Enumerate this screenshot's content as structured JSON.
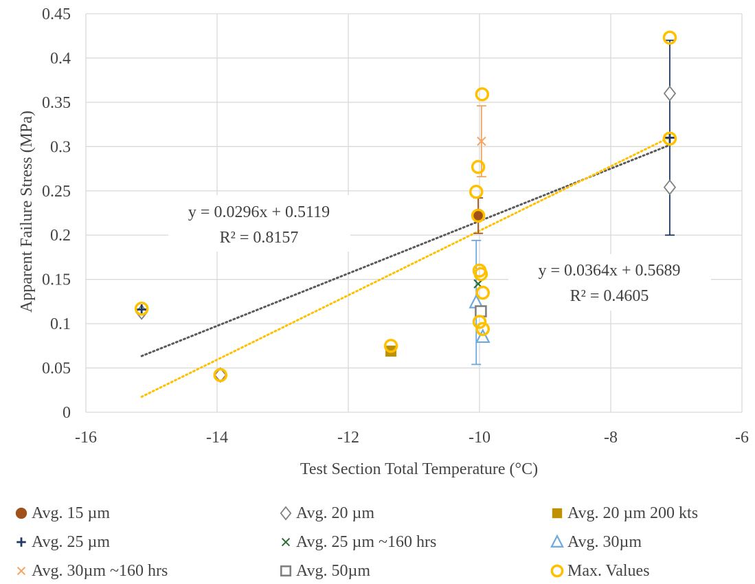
{
  "chart_data": {
    "type": "scatter",
    "xlabel": "Test Section Total Temperature (°C)",
    "ylabel": "Apparent Failure Stress (MPa)",
    "xlim": [
      -16,
      -6
    ],
    "ylim": [
      0,
      0.45
    ],
    "x_ticks": [
      "-16",
      "-14",
      "-12",
      "-10",
      "-8",
      "-6"
    ],
    "y_ticks": [
      "0",
      "0.05",
      "0.1",
      "0.15",
      "0.2",
      "0.25",
      "0.3",
      "0.35",
      "0.4",
      "0.45"
    ],
    "grid": true,
    "legend_position": "bottom",
    "series": [
      {
        "name": "Avg. 15 µm",
        "marker": "circle-filled",
        "color": "#a0521a",
        "points": [
          {
            "x": -10.02,
            "y": 0.222,
            "err_low": 0.02,
            "err_high": 0.02
          }
        ]
      },
      {
        "name": "Avg. 20 µm",
        "marker": "diamond-open",
        "color": "#808080",
        "points": [
          {
            "x": -15.15,
            "y": 0.113
          },
          {
            "x": -13.95,
            "y": 0.042
          },
          {
            "x": -7.1,
            "y": 0.254
          },
          {
            "x": -7.1,
            "y": 0.36
          }
        ]
      },
      {
        "name": "Avg. 20 µm 200 kts",
        "marker": "square-filled",
        "color": "#bf9000",
        "points": [
          {
            "x": -11.35,
            "y": 0.069
          }
        ]
      },
      {
        "name": "Avg. 25 µm",
        "marker": "plus",
        "color": "#1f3864",
        "points": [
          {
            "x": -15.15,
            "y": 0.116
          },
          {
            "x": -7.1,
            "y": 0.31,
            "err_low": 0.11,
            "err_high": 0.11
          }
        ]
      },
      {
        "name": "Avg. 25 µm ~160 hrs",
        "marker": "x",
        "color": "#2e6b2e",
        "points": [
          {
            "x": -10.02,
            "y": 0.145
          }
        ]
      },
      {
        "name": "Avg. 30µm",
        "marker": "triangle-open",
        "color": "#6fa8dc",
        "points": [
          {
            "x": -10.05,
            "y": 0.124,
            "err_low": 0.07,
            "err_high": 0.07
          },
          {
            "x": -9.95,
            "y": 0.085
          }
        ]
      },
      {
        "name": "Avg. 30µm ~160 hrs",
        "marker": "x",
        "color": "#f4a460",
        "points": [
          {
            "x": -9.97,
            "y": 0.306,
            "err_low": 0.04,
            "err_high": 0.04
          }
        ]
      },
      {
        "name": "Avg. 50µm",
        "marker": "square-open",
        "color": "#808080",
        "points": [
          {
            "x": -9.98,
            "y": 0.114
          }
        ]
      },
      {
        "name": "Max. Values",
        "marker": "circle-open",
        "color": "#ffc000",
        "points": [
          {
            "x": -15.15,
            "y": 0.117
          },
          {
            "x": -13.95,
            "y": 0.042
          },
          {
            "x": -11.35,
            "y": 0.075
          },
          {
            "x": -10.05,
            "y": 0.249
          },
          {
            "x": -10.02,
            "y": 0.277
          },
          {
            "x": -9.96,
            "y": 0.359
          },
          {
            "x": -10.02,
            "y": 0.222
          },
          {
            "x": -10.0,
            "y": 0.16
          },
          {
            "x": -9.98,
            "y": 0.156
          },
          {
            "x": -9.95,
            "y": 0.135
          },
          {
            "x": -10.0,
            "y": 0.102
          },
          {
            "x": -9.95,
            "y": 0.094
          },
          {
            "x": -7.1,
            "y": 0.423
          },
          {
            "x": -7.1,
            "y": 0.309
          }
        ]
      }
    ],
    "trendlines": [
      {
        "slope": 0.0296,
        "intercept": 0.5119,
        "x_range": [
          -15.15,
          -7.1
        ],
        "color": "#595959",
        "equation": "y = 0.0296x + 0.5119",
        "r2": "R² = 0.8157"
      },
      {
        "slope": 0.0364,
        "intercept": 0.5689,
        "x_range": [
          -15.15,
          -7.1
        ],
        "color": "#ffc000",
        "equation": "y = 0.0364x + 0.5689",
        "r2": "R² = 0.4605"
      }
    ],
    "legend": [
      {
        "label": "Avg. 15 µm",
        "marker": "circle-filled",
        "color": "#a0521a"
      },
      {
        "label": "Avg. 20 µm",
        "marker": "diamond-open",
        "color": "#808080"
      },
      {
        "label": "Avg. 20 µm 200 kts",
        "marker": "square-filled",
        "color": "#bf9000"
      },
      {
        "label": "Avg. 25 µm",
        "marker": "plus",
        "color": "#1f3864"
      },
      {
        "label": "Avg. 25 µm ~160 hrs",
        "marker": "x",
        "color": "#2e6b2e"
      },
      {
        "label": "Avg. 30µm",
        "marker": "triangle-open",
        "color": "#6fa8dc"
      },
      {
        "label": "Avg. 30µm ~160 hrs",
        "marker": "x",
        "color": "#f4a460"
      },
      {
        "label": "Avg. 50µm",
        "marker": "square-open",
        "color": "#808080"
      },
      {
        "label": "Max. Values",
        "marker": "circle-open",
        "color": "#ffc000"
      }
    ]
  }
}
